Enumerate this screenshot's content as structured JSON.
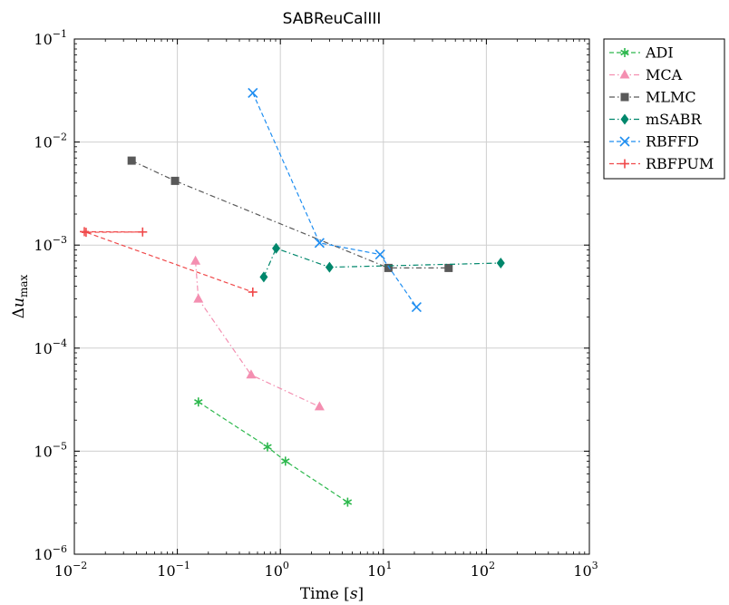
{
  "chart_data": {
    "type": "line",
    "title": "SABReuCalIII",
    "xlabel": "Time [s]",
    "ylabel": "Δu_max",
    "xscale": "log",
    "yscale": "log",
    "xlim": [
      0.01,
      1000
    ],
    "ylim": [
      1e-06,
      0.1
    ],
    "x_ticks": [
      {
        "base": "10",
        "exp": "−2",
        "value": 0.01
      },
      {
        "base": "10",
        "exp": "−1",
        "value": 0.1
      },
      {
        "base": "10",
        "exp": "0",
        "value": 1
      },
      {
        "base": "10",
        "exp": "1",
        "value": 10
      },
      {
        "base": "10",
        "exp": "2",
        "value": 100
      },
      {
        "base": "10",
        "exp": "3",
        "value": 1000
      }
    ],
    "y_ticks": [
      {
        "base": "10",
        "exp": "−6",
        "value": 1e-06
      },
      {
        "base": "10",
        "exp": "−5",
        "value": 1e-05
      },
      {
        "base": "10",
        "exp": "−4",
        "value": 0.0001
      },
      {
        "base": "10",
        "exp": "−3",
        "value": 0.001
      },
      {
        "base": "10",
        "exp": "−2",
        "value": 0.01
      },
      {
        "base": "10",
        "exp": "−1",
        "value": 0.1
      }
    ],
    "grid": true,
    "legend_position": "outside-right-top",
    "series": [
      {
        "name": "ADI",
        "color": "#2db84d",
        "marker": "asterisk",
        "dash": "dashed",
        "points": [
          [
            0.16,
            3e-05
          ],
          [
            0.75,
            1.1e-05
          ],
          [
            1.12,
            8e-06
          ],
          [
            4.5,
            3.2e-06
          ]
        ]
      },
      {
        "name": "MCA",
        "color": "#f48fb1",
        "marker": "triangle",
        "dash": "dashdot",
        "points": [
          [
            0.15,
            0.0007
          ],
          [
            0.16,
            0.0003
          ],
          [
            0.52,
            5.5e-05
          ],
          [
            2.4,
            2.7e-05
          ]
        ]
      },
      {
        "name": "MLMC",
        "color": "#595959",
        "marker": "square",
        "dash": "dashdot",
        "points": [
          [
            0.036,
            0.0066
          ],
          [
            0.095,
            0.0042
          ],
          [
            11.2,
            0.0006
          ],
          [
            43,
            0.0006
          ]
        ]
      },
      {
        "name": "mSABR",
        "color": "#00876c",
        "marker": "diamond",
        "dash": "dashdot",
        "points": [
          [
            0.69,
            0.00049
          ],
          [
            0.91,
            0.00093
          ],
          [
            3.0,
            0.00061
          ],
          [
            138,
            0.00067
          ]
        ]
      },
      {
        "name": "RBFFD",
        "color": "#1f8ef1",
        "marker": "x",
        "dash": "dashed",
        "points": [
          [
            0.54,
            0.03
          ],
          [
            2.4,
            0.00105
          ],
          [
            9.3,
            0.00081
          ],
          [
            21,
            0.00025
          ]
        ]
      },
      {
        "name": "RBFPUM",
        "color": "#f0494a",
        "marker": "plus",
        "dash": "dashed",
        "points": [
          [
            0.0125,
            0.00135
          ],
          [
            0.046,
            0.00134
          ],
          [
            0.013,
            0.00133
          ],
          [
            0.54,
            0.00035
          ]
        ]
      }
    ]
  }
}
